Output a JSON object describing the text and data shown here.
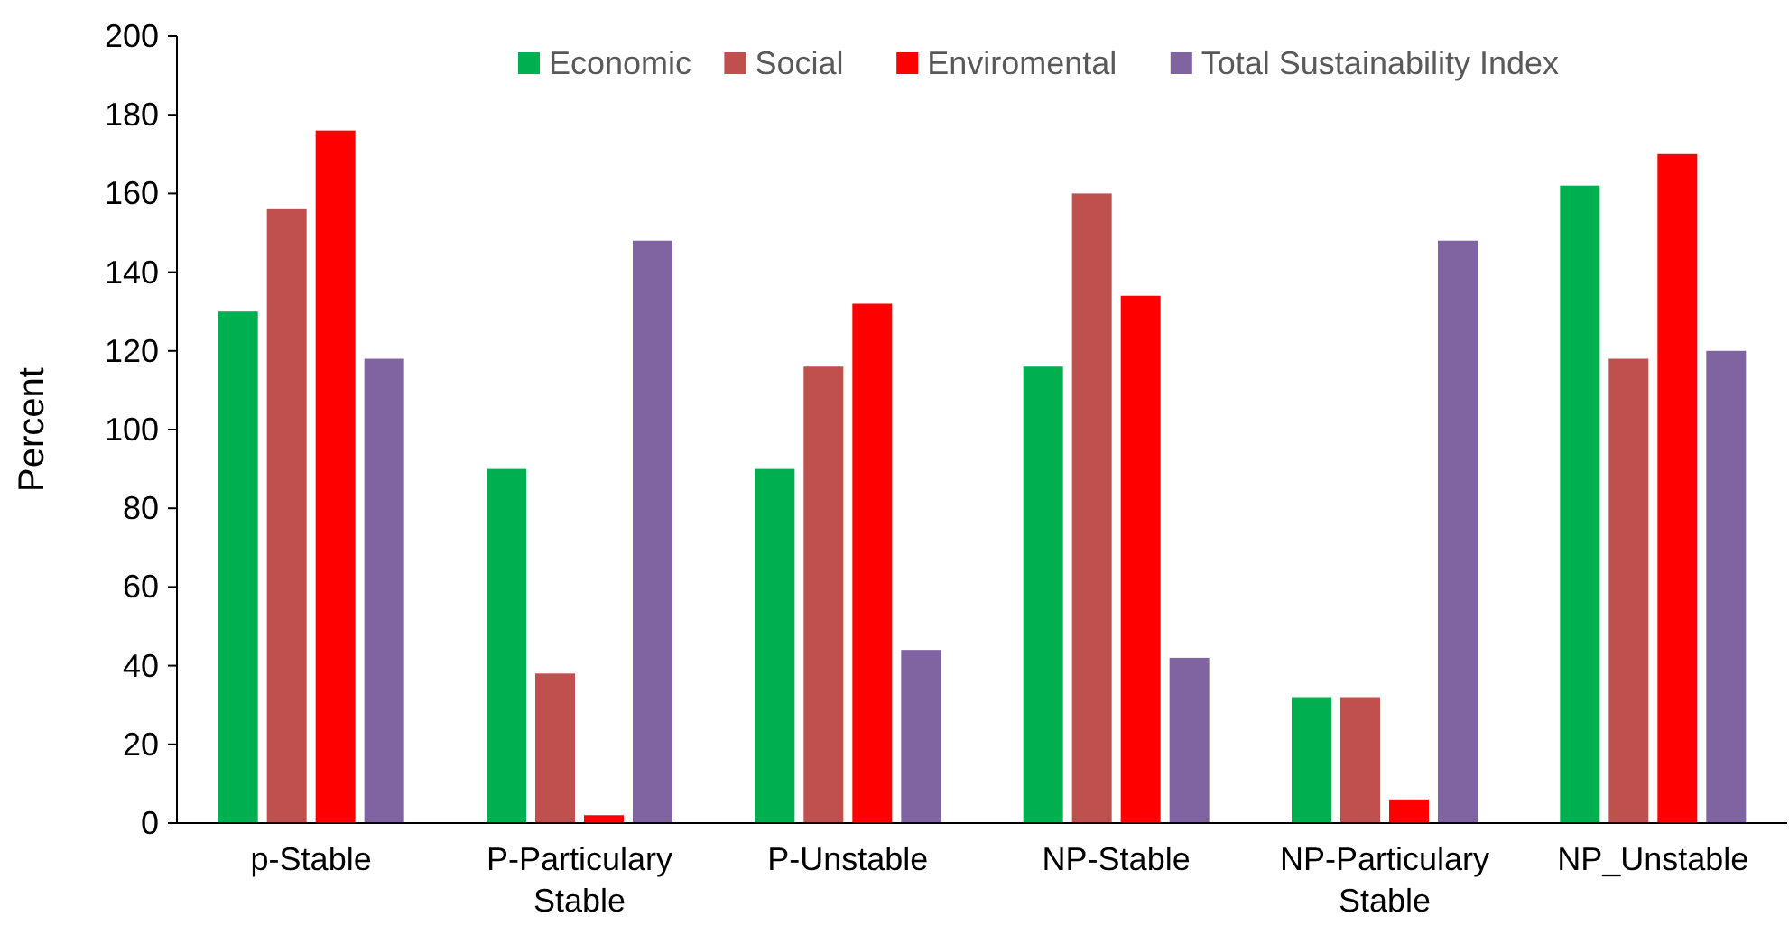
{
  "chart_data": {
    "type": "bar",
    "ylabel": "Percent",
    "categories": [
      "p-Stable",
      "P-Particulary Stable",
      "P-Unstable",
      "NP-Stable",
      "NP-Particulary Stable",
      "NP_Unstable"
    ],
    "series": [
      {
        "name": "Economic",
        "color": "#00b050",
        "values": [
          130,
          90,
          90,
          116,
          32,
          162
        ]
      },
      {
        "name": "Social",
        "color": "#c0504d",
        "values": [
          156,
          38,
          116,
          160,
          32,
          118
        ]
      },
      {
        "name": "Enviromental",
        "color": "#ff0000",
        "values": [
          176,
          2,
          132,
          134,
          6,
          170
        ]
      },
      {
        "name": "Total Sustainability Index",
        "color": "#8064a2",
        "values": [
          118,
          148,
          44,
          42,
          148,
          120
        ]
      }
    ],
    "ylim": [
      0,
      200
    ],
    "yticks": [
      0,
      20,
      40,
      60,
      80,
      100,
      120,
      140,
      160,
      180,
      200
    ],
    "grid": false,
    "legend": "top right"
  }
}
